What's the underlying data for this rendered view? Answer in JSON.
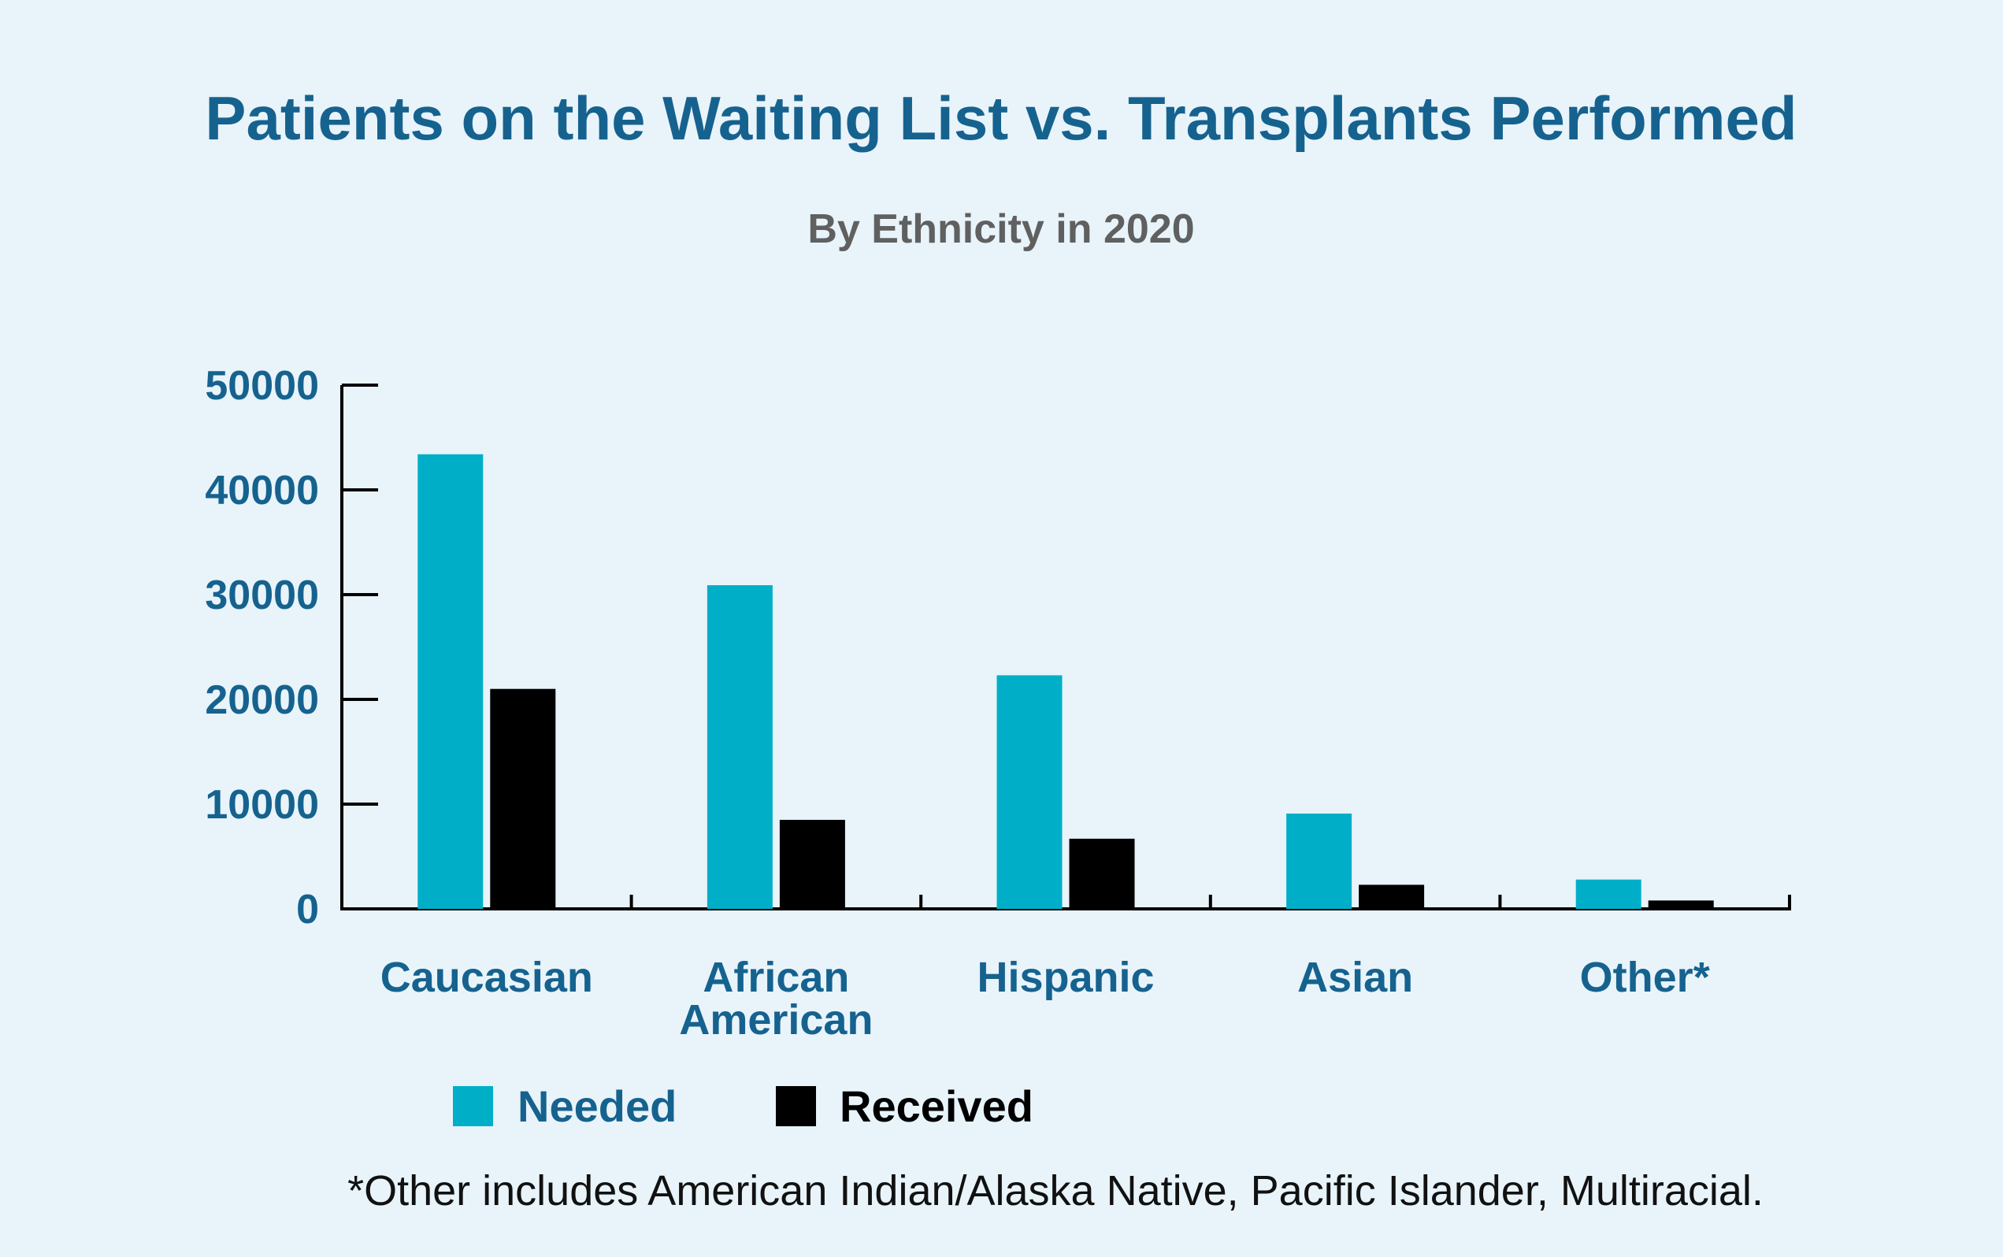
{
  "chart_data": {
    "type": "bar",
    "title": "Patients on the Waiting List vs. Transplants Performed",
    "subtitle": "By Ethnicity in 2020",
    "categories": [
      [
        "Caucasian"
      ],
      [
        "African",
        "American"
      ],
      [
        "Hispanic"
      ],
      [
        "Asian"
      ],
      [
        "Other*"
      ]
    ],
    "series": [
      {
        "name": "Needed",
        "color": "#00afc7",
        "values": [
          43400,
          30900,
          22300,
          9100,
          2800
        ]
      },
      {
        "name": "Received",
        "color": "#000000",
        "values": [
          21000,
          8500,
          6700,
          2300,
          800
        ]
      }
    ],
    "yticks": [
      "0",
      "10000",
      "20000",
      "30000",
      "40000",
      "50000"
    ],
    "ylim": [
      0,
      50000
    ],
    "xlabel": "",
    "ylabel": "",
    "legend_position": "bottom"
  },
  "footnote": "*Other includes American Indian/Alaska Native, Pacific Islander, Multiracial.",
  "colors": {
    "title": "#16628f",
    "axis": "#000000",
    "background": "#e8f4fa"
  }
}
